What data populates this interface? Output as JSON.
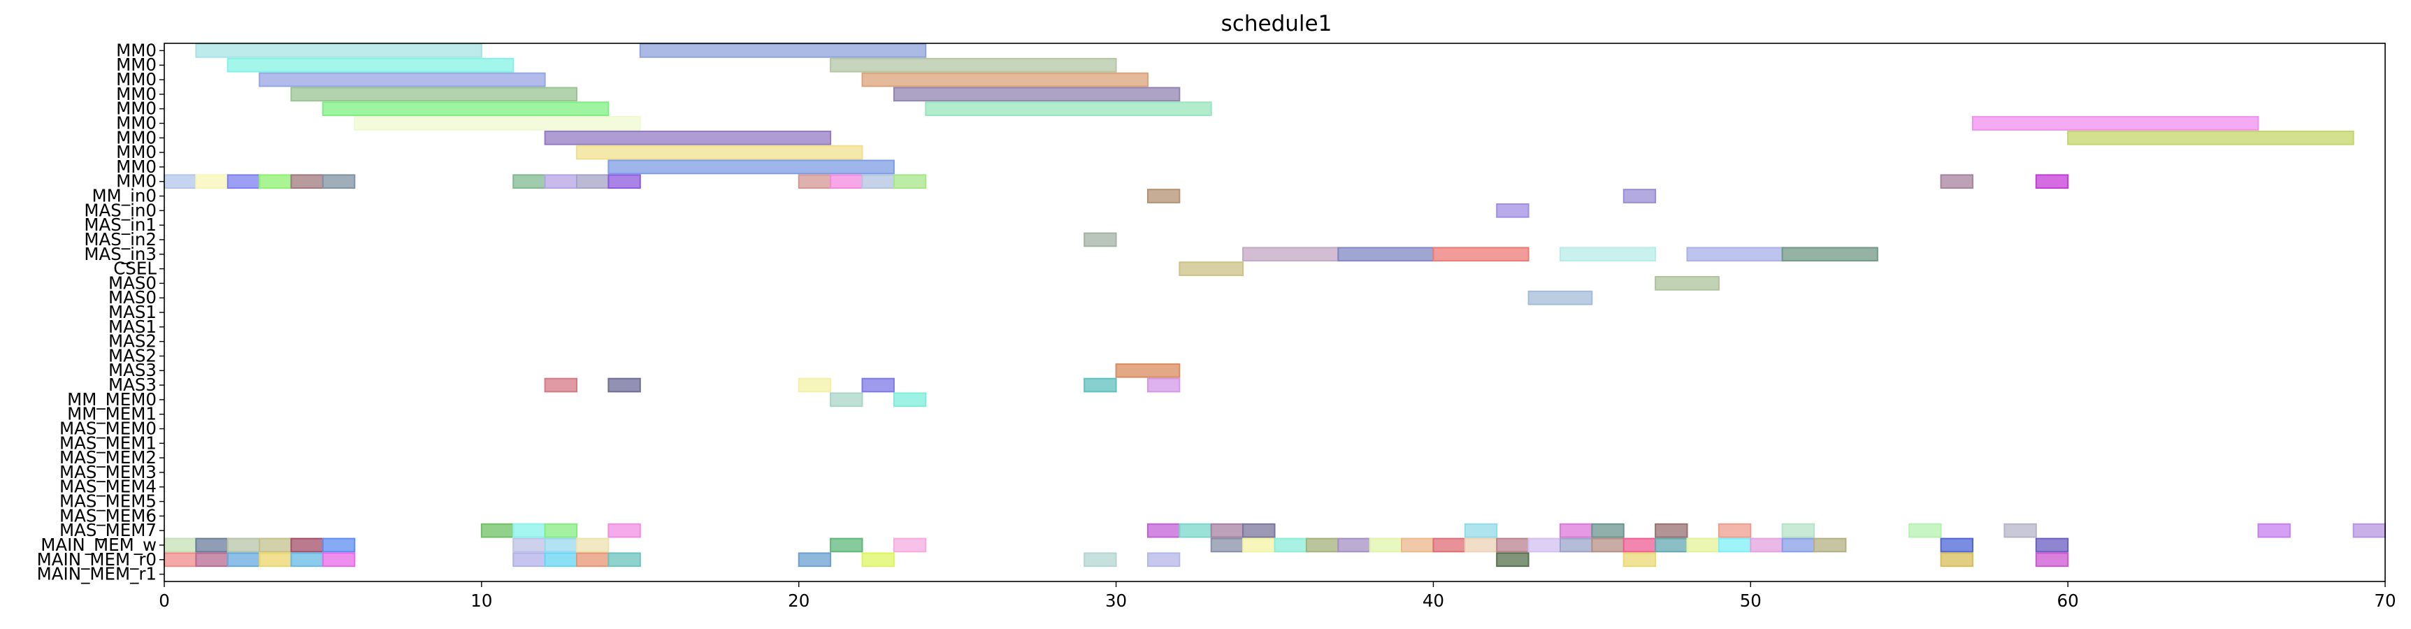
{
  "chart_data": {
    "type": "gantt",
    "title": "schedule1",
    "xlim": [
      0,
      70
    ],
    "x_ticks": [
      0,
      10,
      20,
      30,
      40,
      50,
      60,
      70
    ],
    "y_labels": [
      "MM0",
      "MM0",
      "MM0",
      "MM0",
      "MM0",
      "MM0",
      "MM0",
      "MM0",
      "MM0",
      "MM0",
      "MM_in0",
      "MAS_in0",
      "MAS_in1",
      "MAS_in2",
      "MAS_in3",
      "CSEL",
      "MAS0",
      "MAS0",
      "MAS1",
      "MAS1",
      "MAS2",
      "MAS2",
      "MAS3",
      "MAS3",
      "MM_MEM0",
      "MM_MEM1",
      "MAS_MEM0",
      "MAS_MEM1",
      "MAS_MEM2",
      "MAS_MEM3",
      "MAS_MEM4",
      "MAS_MEM5",
      "MAS_MEM6",
      "MAS_MEM7",
      "MAIN_MEM_w",
      "MAIN_MEM_r0",
      "MAIN_MEM_r1"
    ],
    "bars": [
      {
        "row": 0,
        "start": 1,
        "end": 10,
        "color": "#a7e3e3"
      },
      {
        "row": 0,
        "start": 15,
        "end": 24,
        "color": "#8fa3db"
      },
      {
        "row": 1,
        "start": 2,
        "end": 11,
        "color": "#84f3e3"
      },
      {
        "row": 1,
        "start": 21,
        "end": 30,
        "color": "#b3c7a5"
      },
      {
        "row": 2,
        "start": 3,
        "end": 12,
        "color": "#97a6e3"
      },
      {
        "row": 2,
        "start": 22,
        "end": 31,
        "color": "#dba37a"
      },
      {
        "row": 3,
        "start": 4,
        "end": 13,
        "color": "#9ac493"
      },
      {
        "row": 3,
        "start": 23,
        "end": 32,
        "color": "#9284b0"
      },
      {
        "row": 4,
        "start": 5,
        "end": 14,
        "color": "#7ef080"
      },
      {
        "row": 4,
        "start": 24,
        "end": 33,
        "color": "#98e6bc"
      },
      {
        "row": 5,
        "start": 6,
        "end": 15,
        "color": "#effad0"
      },
      {
        "row": 5,
        "start": 57,
        "end": 66,
        "color": "#f18ef0"
      },
      {
        "row": 6,
        "start": 12,
        "end": 21,
        "color": "#937bc4"
      },
      {
        "row": 6,
        "start": 60,
        "end": 69,
        "color": "#c4d66a"
      },
      {
        "row": 7,
        "start": 13,
        "end": 22,
        "color": "#f0e08e"
      },
      {
        "row": 8,
        "start": 14,
        "end": 23,
        "color": "#7d9ee6"
      },
      {
        "row": 9,
        "start": 0,
        "end": 1,
        "color": "#b1c6ea"
      },
      {
        "row": 9,
        "start": 1,
        "end": 2,
        "color": "#f8f5b7"
      },
      {
        "row": 9,
        "start": 2,
        "end": 3,
        "color": "#7c7ff2"
      },
      {
        "row": 9,
        "start": 3,
        "end": 4,
        "color": "#8df26f"
      },
      {
        "row": 9,
        "start": 4,
        "end": 5,
        "color": "#a0797f"
      },
      {
        "row": 9,
        "start": 5,
        "end": 6,
        "color": "#7f93a2"
      },
      {
        "row": 9,
        "start": 11,
        "end": 12,
        "color": "#81b992"
      },
      {
        "row": 9,
        "start": 12,
        "end": 13,
        "color": "#b5a4e6"
      },
      {
        "row": 9,
        "start": 13,
        "end": 14,
        "color": "#a4a3c6"
      },
      {
        "row": 9,
        "start": 14,
        "end": 15,
        "color": "#8e5adf"
      },
      {
        "row": 9,
        "start": 20,
        "end": 21,
        "color": "#d49793"
      },
      {
        "row": 9,
        "start": 21,
        "end": 22,
        "color": "#f289df"
      },
      {
        "row": 9,
        "start": 22,
        "end": 23,
        "color": "#b2c4e0"
      },
      {
        "row": 9,
        "start": 23,
        "end": 24,
        "color": "#a5e688"
      },
      {
        "row": 9,
        "start": 56,
        "end": 57,
        "color": "#a7829e"
      },
      {
        "row": 9,
        "start": 59,
        "end": 60,
        "color": "#c53bd8"
      },
      {
        "row": 10,
        "start": 31,
        "end": 32,
        "color": "#b49271"
      },
      {
        "row": 10,
        "start": 46,
        "end": 47,
        "color": "#9a8ed6"
      },
      {
        "row": 11,
        "start": 42,
        "end": 43,
        "color": "#a28ee3"
      },
      {
        "row": 13,
        "start": 29,
        "end": 30,
        "color": "#a3b3a4"
      },
      {
        "row": 14,
        "start": 34,
        "end": 37,
        "color": "#c3a7c4"
      },
      {
        "row": 14,
        "start": 37,
        "end": 40,
        "color": "#8187c2"
      },
      {
        "row": 14,
        "start": 40,
        "end": 43,
        "color": "#ec7b75"
      },
      {
        "row": 14,
        "start": 44,
        "end": 47,
        "color": "#b7ece8"
      },
      {
        "row": 14,
        "start": 48,
        "end": 51,
        "color": "#aab0e8"
      },
      {
        "row": 14,
        "start": 51,
        "end": 54,
        "color": "#719a86"
      },
      {
        "row": 15,
        "start": 32,
        "end": 34,
        "color": "#cbc285"
      },
      {
        "row": 16,
        "start": 47,
        "end": 49,
        "color": "#aec49c"
      },
      {
        "row": 17,
        "start": 43,
        "end": 45,
        "color": "#a4bcd9"
      },
      {
        "row": 22,
        "start": 30,
        "end": 32,
        "color": "#d98c5f"
      },
      {
        "row": 23,
        "start": 12,
        "end": 13,
        "color": "#d47a85"
      },
      {
        "row": 23,
        "start": 14,
        "end": 15,
        "color": "#6f6c98"
      },
      {
        "row": 23,
        "start": 20,
        "end": 21,
        "color": "#f3f1a6"
      },
      {
        "row": 23,
        "start": 22,
        "end": 23,
        "color": "#7d7ae6"
      },
      {
        "row": 23,
        "start": 29,
        "end": 30,
        "color": "#5fc0bf"
      },
      {
        "row": 23,
        "start": 31,
        "end": 32,
        "color": "#d398e6"
      },
      {
        "row": 24,
        "start": 21,
        "end": 22,
        "color": "#a9d5c7"
      },
      {
        "row": 24,
        "start": 23,
        "end": 24,
        "color": "#7eeed9"
      },
      {
        "row": 33,
        "start": 10,
        "end": 11,
        "color": "#6ec163"
      },
      {
        "row": 33,
        "start": 11,
        "end": 12,
        "color": "#87f3ea"
      },
      {
        "row": 33,
        "start": 12,
        "end": 13,
        "color": "#86ec82"
      },
      {
        "row": 33,
        "start": 14,
        "end": 15,
        "color": "#f28de4"
      },
      {
        "row": 33,
        "start": 31,
        "end": 32,
        "color": "#c161d8"
      },
      {
        "row": 33,
        "start": 32,
        "end": 33,
        "color": "#79d7c9"
      },
      {
        "row": 33,
        "start": 33,
        "end": 34,
        "color": "#a780a2"
      },
      {
        "row": 33,
        "start": 34,
        "end": 35,
        "color": "#7a779e"
      },
      {
        "row": 33,
        "start": 41,
        "end": 42,
        "color": "#93dbe8"
      },
      {
        "row": 33,
        "start": 44,
        "end": 45,
        "color": "#dd78d9"
      },
      {
        "row": 33,
        "start": 45,
        "end": 46,
        "color": "#6c958f"
      },
      {
        "row": 33,
        "start": 47,
        "end": 48,
        "color": "#9a7070"
      },
      {
        "row": 33,
        "start": 49,
        "end": 50,
        "color": "#ee9e8f"
      },
      {
        "row": 33,
        "start": 51,
        "end": 52,
        "color": "#b7e3c5"
      },
      {
        "row": 33,
        "start": 55,
        "end": 56,
        "color": "#b5f2b0"
      },
      {
        "row": 33,
        "start": 58,
        "end": 59,
        "color": "#b5b5c9"
      },
      {
        "row": 33,
        "start": 66,
        "end": 67,
        "color": "#c680f0"
      },
      {
        "row": 33,
        "start": 69,
        "end": 70,
        "color": "#b695e2"
      },
      {
        "row": 34,
        "start": 0,
        "end": 1,
        "color": "#c5e1b6"
      },
      {
        "row": 34,
        "start": 1,
        "end": 2,
        "color": "#6a7e9b"
      },
      {
        "row": 34,
        "start": 2,
        "end": 3,
        "color": "#b8c4a8"
      },
      {
        "row": 34,
        "start": 3,
        "end": 4,
        "color": "#c4c18e"
      },
      {
        "row": 34,
        "start": 4,
        "end": 5,
        "color": "#a34f6a"
      },
      {
        "row": 34,
        "start": 5,
        "end": 6,
        "color": "#5f8df2"
      },
      {
        "row": 34,
        "start": 11,
        "end": 12,
        "color": "#bdc2e6"
      },
      {
        "row": 34,
        "start": 12,
        "end": 13,
        "color": "#99d8ef"
      },
      {
        "row": 34,
        "start": 13,
        "end": 14,
        "color": "#ece2b0"
      },
      {
        "row": 34,
        "start": 21,
        "end": 22,
        "color": "#5fb87a"
      },
      {
        "row": 34,
        "start": 23,
        "end": 24,
        "color": "#f6acdf"
      },
      {
        "row": 34,
        "start": 33,
        "end": 34,
        "color": "#8590a8"
      },
      {
        "row": 34,
        "start": 34,
        "end": 35,
        "color": "#f4f3a4"
      },
      {
        "row": 34,
        "start": 35,
        "end": 36,
        "color": "#8ceed9"
      },
      {
        "row": 34,
        "start": 36,
        "end": 37,
        "color": "#a4b27c"
      },
      {
        "row": 34,
        "start": 37,
        "end": 38,
        "color": "#a68fc4"
      },
      {
        "row": 34,
        "start": 38,
        "end": 39,
        "color": "#e2f4ac"
      },
      {
        "row": 34,
        "start": 39,
        "end": 40,
        "color": "#ebb88b"
      },
      {
        "row": 34,
        "start": 40,
        "end": 41,
        "color": "#dd6e76"
      },
      {
        "row": 34,
        "start": 41,
        "end": 42,
        "color": "#ecd3b7"
      },
      {
        "row": 34,
        "start": 42,
        "end": 43,
        "color": "#b9838f"
      },
      {
        "row": 34,
        "start": 43,
        "end": 44,
        "color": "#d3bff2"
      },
      {
        "row": 34,
        "start": 44,
        "end": 45,
        "color": "#9ca5c9"
      },
      {
        "row": 34,
        "start": 45,
        "end": 46,
        "color": "#b79085"
      },
      {
        "row": 34,
        "start": 46,
        "end": 47,
        "color": "#ef5e94"
      },
      {
        "row": 34,
        "start": 47,
        "end": 48,
        "color": "#64a9b1"
      },
      {
        "row": 34,
        "start": 48,
        "end": 49,
        "color": "#e4f39a"
      },
      {
        "row": 34,
        "start": 49,
        "end": 50,
        "color": "#7ef0f5"
      },
      {
        "row": 34,
        "start": 50,
        "end": 51,
        "color": "#e4a2e0"
      },
      {
        "row": 34,
        "start": 51,
        "end": 52,
        "color": "#879fe6"
      },
      {
        "row": 34,
        "start": 52,
        "end": 53,
        "color": "#b4b083"
      },
      {
        "row": 34,
        "start": 56,
        "end": 57,
        "color": "#4f67d6"
      },
      {
        "row": 34,
        "start": 59,
        "end": 60,
        "color": "#6a5ec3"
      },
      {
        "row": 35,
        "start": 0,
        "end": 1,
        "color": "#ef8c8a"
      },
      {
        "row": 35,
        "start": 1,
        "end": 2,
        "color": "#b56b92"
      },
      {
        "row": 35,
        "start": 2,
        "end": 3,
        "color": "#68a9dd"
      },
      {
        "row": 35,
        "start": 3,
        "end": 4,
        "color": "#ecd66b"
      },
      {
        "row": 35,
        "start": 4,
        "end": 5,
        "color": "#67b9e7"
      },
      {
        "row": 35,
        "start": 5,
        "end": 6,
        "color": "#e86ae8"
      },
      {
        "row": 35,
        "start": 11,
        "end": 12,
        "color": "#b2b2ea"
      },
      {
        "row": 35,
        "start": 12,
        "end": 13,
        "color": "#66d6f1"
      },
      {
        "row": 35,
        "start": 13,
        "end": 14,
        "color": "#e69573"
      },
      {
        "row": 35,
        "start": 14,
        "end": 15,
        "color": "#6bc4bd"
      },
      {
        "row": 35,
        "start": 20,
        "end": 21,
        "color": "#6b9fd0"
      },
      {
        "row": 35,
        "start": 22,
        "end": 23,
        "color": "#dcf560"
      },
      {
        "row": 35,
        "start": 29,
        "end": 30,
        "color": "#b3d6d2"
      },
      {
        "row": 35,
        "start": 31,
        "end": 32,
        "color": "#b5b6ea"
      },
      {
        "row": 35,
        "start": 42,
        "end": 43,
        "color": "#56714d"
      },
      {
        "row": 35,
        "start": 46,
        "end": 47,
        "color": "#ebd873"
      },
      {
        "row": 35,
        "start": 56,
        "end": 57,
        "color": "#d8be5a"
      },
      {
        "row": 35,
        "start": 59,
        "end": 60,
        "color": "#cd57d2"
      }
    ]
  }
}
